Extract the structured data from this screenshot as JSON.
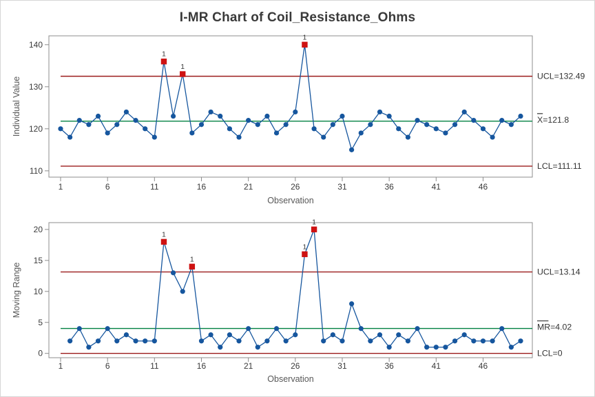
{
  "title": "I-MR Chart of Coil_Resistance_Ohms",
  "colors": {
    "series": "#16569E",
    "out_of_control": "#CE1212",
    "control_limit_line": "#9B1B1B",
    "center_line": "#008040",
    "plot_border": "#8C8C8C",
    "text_primary": "#3A3A3A",
    "text_secondary": "#575757",
    "limit_label_text": "#333333",
    "figure_border": "#D6D6D6",
    "background": "#FFFFFF"
  },
  "chart_data": [
    {
      "type": "line",
      "subchart": "individuals",
      "ylabel": "Individual Value",
      "xlabel": "Observation",
      "x_start": 1,
      "values": [
        120,
        118,
        122,
        121,
        123,
        119,
        121,
        124,
        122,
        120,
        118,
        136,
        123,
        133,
        119,
        121,
        124,
        123,
        120,
        118,
        122,
        121,
        123,
        119,
        121,
        124,
        140,
        120,
        118,
        121,
        123,
        115,
        119,
        121,
        124,
        123,
        120,
        118,
        122,
        121,
        120,
        119,
        121,
        124,
        122,
        120,
        118,
        122,
        121,
        123
      ],
      "out_of_control_points": [
        12,
        14,
        27
      ],
      "out_of_control_flag": "1",
      "center_value": 121.8,
      "ucl_value": 132.49,
      "lcl_value": 111.11,
      "ucl_label": "UCL=132.49",
      "center_label": "X=121.8",
      "center_label_bar_over": "X",
      "lcl_label": "LCL=111.11",
      "yticks": [
        110,
        120,
        130,
        140
      ],
      "xticks": [
        1,
        6,
        11,
        16,
        21,
        26,
        31,
        36,
        41,
        46
      ],
      "ylim": [
        108.5,
        142.1
      ],
      "xlim": [
        1,
        50
      ],
      "grid": false,
      "legend": "none",
      "marker": "circle",
      "out_marker": "square"
    },
    {
      "type": "line",
      "subchart": "moving_range",
      "ylabel": "Moving Range",
      "xlabel": "Observation",
      "x_start": 2,
      "values": [
        2,
        4,
        1,
        2,
        4,
        2,
        3,
        2,
        2,
        2,
        18,
        13,
        10,
        14,
        2,
        3,
        1,
        3,
        2,
        4,
        1,
        2,
        4,
        2,
        3,
        16,
        20,
        2,
        3,
        2,
        8,
        4,
        2,
        3,
        1,
        3,
        2,
        4,
        1,
        1,
        1,
        2,
        3,
        2,
        2,
        2,
        4,
        1,
        2
      ],
      "out_of_control_points": [
        12,
        15,
        27,
        28
      ],
      "out_of_control_flag": "1",
      "center_value": 4.02,
      "ucl_value": 13.14,
      "lcl_value": 0,
      "ucl_label": "UCL=13.14",
      "center_label": "MR=4.02",
      "center_label_bar_over": "MR",
      "lcl_label": "LCL=0",
      "yticks": [
        0,
        5,
        10,
        15,
        20
      ],
      "xticks": [
        1,
        6,
        11,
        16,
        21,
        26,
        31,
        36,
        41,
        46
      ],
      "ylim": [
        -0.7,
        21.1
      ],
      "xlim": [
        1,
        50
      ],
      "grid": false,
      "legend": "none",
      "marker": "circle",
      "out_marker": "square"
    }
  ]
}
